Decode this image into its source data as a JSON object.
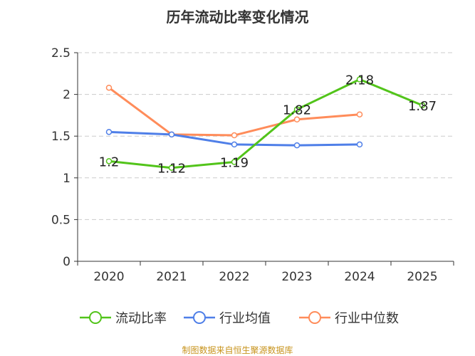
{
  "chart_data": {
    "type": "line",
    "title": "历年流动比率变化情况",
    "categories": [
      "2020",
      "2021",
      "2022",
      "2023",
      "2024",
      "2025"
    ],
    "ylim": [
      0,
      2.5
    ],
    "yticks": [
      "0",
      "0.5",
      "1",
      "1.5",
      "2",
      "2.5"
    ],
    "yticks_values": [
      0,
      0.5,
      1,
      1.5,
      2,
      2.5
    ],
    "grid": true,
    "legend_position": "bottom",
    "series": [
      {
        "name": "流动比率",
        "color": "#52c41a",
        "values": [
          1.2,
          1.12,
          1.19,
          1.82,
          2.18,
          1.87
        ],
        "labels": [
          "1.2",
          "1.12",
          "1.19",
          "1.82",
          "2.18",
          "1.87"
        ]
      },
      {
        "name": "行业均值",
        "color": "#4f7fe8",
        "values": [
          1.55,
          1.52,
          1.4,
          1.39,
          1.4,
          null
        ]
      },
      {
        "name": "行业中位数",
        "color": "#ff8c5a",
        "values": [
          2.08,
          1.52,
          1.51,
          1.7,
          1.76,
          null
        ]
      }
    ]
  },
  "source": "制图数据来自恒生聚源数据库"
}
